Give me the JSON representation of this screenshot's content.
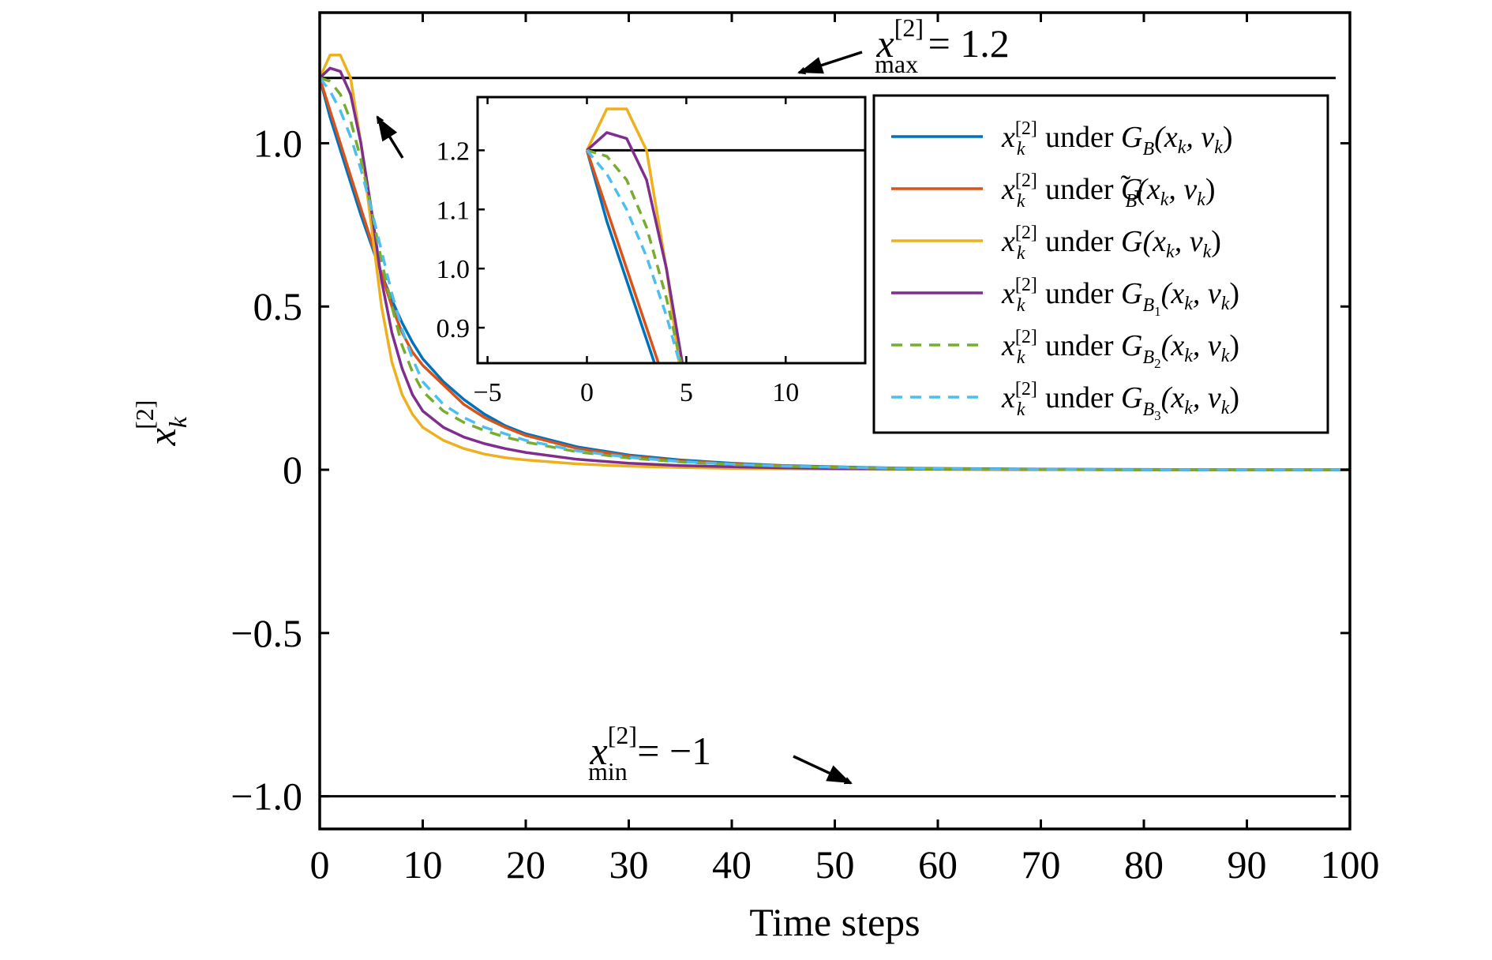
{
  "chart_data": {
    "type": "line",
    "xlabel": "Time steps",
    "ylabel": {
      "base": "x",
      "sub": "k",
      "sup": "[2]"
    },
    "xlim": [
      0,
      100
    ],
    "ylim": [
      -1.1,
      1.4
    ],
    "xticks": [
      0,
      10,
      20,
      30,
      40,
      50,
      60,
      70,
      80,
      90,
      100
    ],
    "yticks": [
      -1.0,
      -0.5,
      0,
      0.5,
      1.0
    ],
    "xtick_labels": [
      "0",
      "10",
      "20",
      "30",
      "40",
      "50",
      "60",
      "70",
      "80",
      "90",
      "100"
    ],
    "ytick_labels": [
      "−1.0",
      "−0.5",
      "0",
      "0.5",
      "1.0"
    ],
    "grid": false,
    "legend_position": "top-right",
    "constraints": [
      {
        "y": 1.2,
        "label": {
          "base": "x",
          "sub": "max",
          "sup": "[2]",
          "rest": " = 1.2"
        }
      },
      {
        "y": -1.0,
        "label": {
          "base": "x",
          "sub": "min",
          "sup": "[2]",
          "rest": " = −1"
        }
      }
    ],
    "series": [
      {
        "key": "GB",
        "color": "#0072BD",
        "dash": "solid",
        "legend": {
          "pre": "x",
          "pre_sub": "k",
          "pre_sup": "[2]",
          "mid": " under ",
          "G": "G",
          "G_sub": "B",
          "G_sub2": "",
          "tilde": false,
          "arg": "(x",
          "arg_sub": "k",
          "arg_rest": ", v",
          "arg_sub2": "k",
          "close": ")"
        },
        "x": [
          0,
          1,
          2,
          3,
          4,
          5,
          6,
          7,
          8,
          9,
          10,
          12,
          14,
          16,
          18,
          20,
          25,
          30,
          35,
          40,
          45,
          50,
          55,
          60,
          70,
          80,
          90,
          100
        ],
        "y": [
          1.2,
          1.08,
          0.98,
          0.88,
          0.78,
          0.69,
          0.6,
          0.52,
          0.45,
          0.39,
          0.34,
          0.27,
          0.215,
          0.17,
          0.135,
          0.11,
          0.07,
          0.045,
          0.03,
          0.02,
          0.013,
          0.009,
          0.006,
          0.004,
          0.002,
          0.001,
          0,
          0
        ]
      },
      {
        "key": "GBtilde",
        "color": "#D95319",
        "dash": "solid",
        "legend": {
          "pre": "x",
          "pre_sub": "k",
          "pre_sup": "[2]",
          "mid": " under ",
          "G": "G",
          "G_sub": "B",
          "G_sub2": "",
          "tilde": true,
          "arg": "(x",
          "arg_sub": "k",
          "arg_rest": ", v",
          "arg_sub2": "k",
          "close": ")"
        },
        "x": [
          0,
          1,
          2,
          3,
          4,
          5,
          6,
          7,
          8,
          9,
          10,
          12,
          14,
          16,
          18,
          20,
          25,
          30,
          35,
          40,
          45,
          50,
          55,
          60,
          70,
          80,
          90,
          100
        ],
        "y": [
          1.2,
          1.1,
          1.0,
          0.9,
          0.8,
          0.7,
          0.6,
          0.5,
          0.42,
          0.36,
          0.32,
          0.26,
          0.2,
          0.16,
          0.13,
          0.105,
          0.065,
          0.042,
          0.027,
          0.018,
          0.012,
          0.008,
          0.005,
          0.003,
          0.001,
          0,
          0,
          0
        ]
      },
      {
        "key": "G",
        "color": "#EDB120",
        "dash": "solid",
        "legend": {
          "pre": "x",
          "pre_sub": "k",
          "pre_sup": "[2]",
          "mid": " under ",
          "G": "G",
          "G_sub": "",
          "G_sub2": "",
          "tilde": false,
          "arg": "(x",
          "arg_sub": "k",
          "arg_rest": ", v",
          "arg_sub2": "k",
          "close": ")"
        },
        "x": [
          0,
          1,
          2,
          3,
          4,
          5,
          6,
          7,
          8,
          9,
          10,
          12,
          14,
          16,
          18,
          20,
          25,
          30,
          35,
          40,
          45,
          50,
          55,
          60,
          70,
          80,
          90,
          100
        ],
        "y": [
          1.2,
          1.27,
          1.27,
          1.2,
          1.0,
          0.75,
          0.5,
          0.33,
          0.23,
          0.17,
          0.13,
          0.09,
          0.065,
          0.048,
          0.037,
          0.03,
          0.018,
          0.011,
          0.007,
          0.004,
          0.003,
          0.002,
          0.001,
          0.001,
          0,
          0,
          0,
          0
        ]
      },
      {
        "key": "GB1",
        "color": "#7E2F8E",
        "dash": "solid",
        "legend": {
          "pre": "x",
          "pre_sub": "k",
          "pre_sup": "[2]",
          "mid": " under ",
          "G": "G",
          "G_sub": "B",
          "G_sub2": "1",
          "tilde": false,
          "arg": "(x",
          "arg_sub": "k",
          "arg_rest": ", v",
          "arg_sub2": "k",
          "close": ")"
        },
        "x": [
          0,
          1,
          2,
          3,
          4,
          5,
          6,
          7,
          8,
          9,
          10,
          12,
          14,
          16,
          18,
          20,
          25,
          30,
          35,
          40,
          45,
          50,
          55,
          60,
          70,
          80,
          90,
          100
        ],
        "y": [
          1.2,
          1.23,
          1.22,
          1.15,
          1.0,
          0.8,
          0.58,
          0.42,
          0.31,
          0.23,
          0.18,
          0.13,
          0.1,
          0.08,
          0.065,
          0.053,
          0.032,
          0.02,
          0.013,
          0.009,
          0.006,
          0.004,
          0.003,
          0.002,
          0.001,
          0,
          0,
          0
        ]
      },
      {
        "key": "GB2",
        "color": "#77AC30",
        "dash": "dashed",
        "legend": {
          "pre": "x",
          "pre_sub": "k",
          "pre_sup": "[2]",
          "mid": " under ",
          "G": "G",
          "G_sub": "B",
          "G_sub2": "2",
          "tilde": false,
          "arg": "(x",
          "arg_sub": "k",
          "arg_rest": ", v",
          "arg_sub2": "k",
          "close": ")"
        },
        "x": [
          0,
          1,
          2,
          3,
          4,
          5,
          6,
          7,
          8,
          9,
          10,
          12,
          14,
          16,
          18,
          20,
          25,
          30,
          35,
          40,
          45,
          50,
          55,
          60,
          70,
          80,
          90,
          100
        ],
        "y": [
          1.2,
          1.19,
          1.15,
          1.07,
          0.95,
          0.8,
          0.64,
          0.5,
          0.38,
          0.3,
          0.24,
          0.18,
          0.145,
          0.12,
          0.1,
          0.085,
          0.055,
          0.036,
          0.024,
          0.016,
          0.011,
          0.007,
          0.005,
          0.003,
          0.001,
          0,
          0,
          0
        ]
      },
      {
        "key": "GB3",
        "color": "#4DBEEE",
        "dash": "dashed",
        "legend": {
          "pre": "x",
          "pre_sub": "k",
          "pre_sup": "[2]",
          "mid": " under ",
          "G": "G",
          "G_sub": "B",
          "G_sub2": "3",
          "tilde": false,
          "arg": "(x",
          "arg_sub": "k",
          "arg_rest": ", v",
          "arg_sub2": "k",
          "close": ")"
        },
        "x": [
          0,
          1,
          2,
          3,
          4,
          5,
          6,
          7,
          8,
          9,
          10,
          12,
          14,
          16,
          18,
          20,
          25,
          30,
          35,
          40,
          45,
          50,
          55,
          60,
          70,
          80,
          90,
          100
        ],
        "y": [
          1.2,
          1.16,
          1.1,
          1.02,
          0.92,
          0.8,
          0.67,
          0.54,
          0.43,
          0.34,
          0.27,
          0.2,
          0.16,
          0.13,
          0.11,
          0.09,
          0.058,
          0.038,
          0.025,
          0.017,
          0.011,
          0.008,
          0.005,
          0.003,
          0.001,
          0,
          0,
          0
        ]
      }
    ],
    "inset": {
      "xlim": [
        -5.5,
        14
      ],
      "ylim": [
        0.84,
        1.29
      ],
      "xticks": [
        -5,
        0,
        5,
        10
      ],
      "yticks": [
        0.9,
        1.0,
        1.1,
        1.2
      ],
      "xtick_labels": [
        "−5",
        "0",
        "5",
        "10"
      ],
      "ytick_labels": [
        "0.9",
        "1.0",
        "1.1",
        "1.2"
      ],
      "hline": 1.2
    }
  }
}
